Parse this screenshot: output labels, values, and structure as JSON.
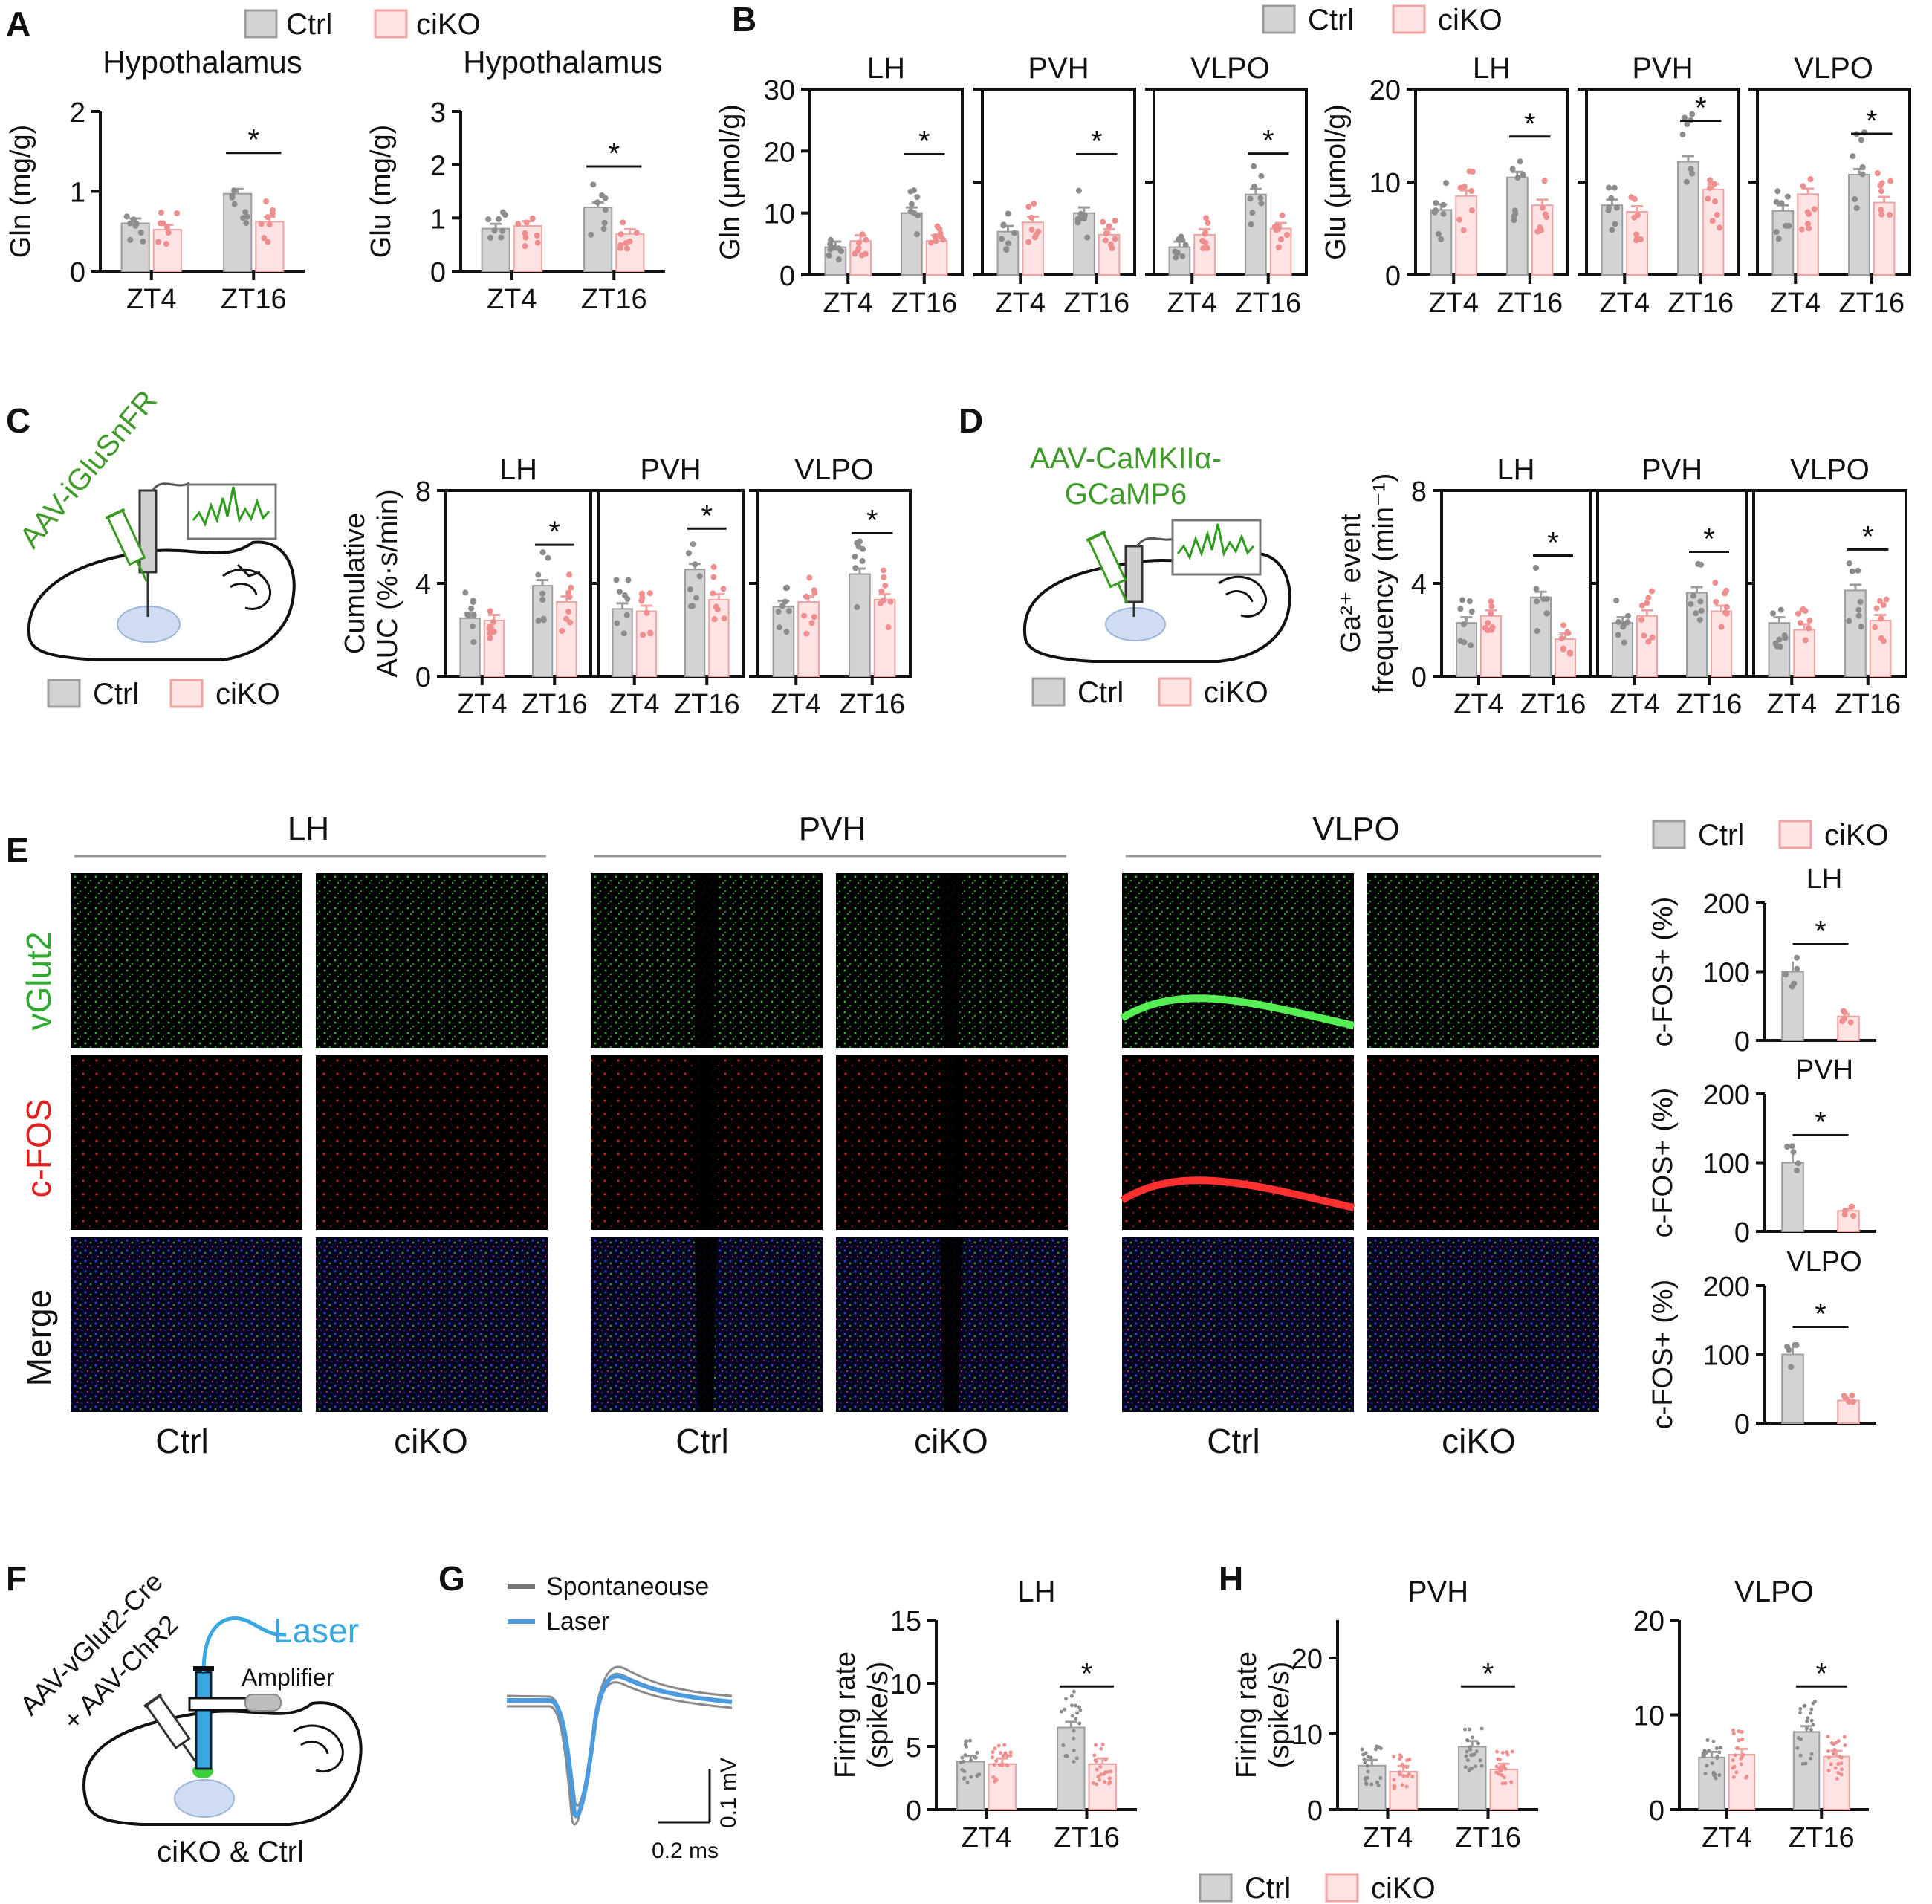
{
  "colors": {
    "ctrl": "#d3d3d3",
    "ctrl_edge": "#9c9c9c",
    "ctrl_dot": "#8c8c8c",
    "ciko": "#fde3e3",
    "ciko_edge": "#f0a3a3",
    "ciko_dot": "#ef8e8e",
    "green": "#3f9a2a",
    "red": "#e02020",
    "blue_laser": "#4a9be0"
  },
  "legend": {
    "ctrl": "Ctrl",
    "ciko": "ciKO"
  },
  "panels": {
    "A": "A",
    "B": "B",
    "C": "C",
    "D": "D",
    "E": "E",
    "F": "F",
    "G": "G",
    "H": "H"
  },
  "panel_c": {
    "virus": "AAV-iGluSnFR"
  },
  "panel_d": {
    "virus_line1": "AAV-CaMKIIα-",
    "virus_line2": "GCaMP6"
  },
  "panel_e": {
    "regions": [
      "LH",
      "PVH",
      "VLPO"
    ],
    "rows": [
      "vGlut2",
      "c-FOS",
      "Merge"
    ],
    "columns": [
      "Ctrl",
      "ciKO",
      "Ctrl",
      "ciKO",
      "Ctrl",
      "ciKO"
    ]
  },
  "panel_f": {
    "virus_line1": "AAV-vGlut2-Cre",
    "virus_line2": "+ AAV-ChR2",
    "laser": "Laser",
    "amplifier": "Amplifier",
    "caption": "ciKO & Ctrl"
  },
  "panel_g": {
    "legend_spont": "Spontaneouse",
    "legend_laser": "Laser",
    "scale_v": "0.1 mV",
    "scale_t": "0.2 ms"
  },
  "chart_data": [
    {
      "id": "A1",
      "type": "bar",
      "title": "Hypothalamus",
      "ylabel": "Gln (mg/g)",
      "ylim": [
        0,
        2
      ],
      "yticks": [
        0,
        1,
        2
      ],
      "categories": [
        "ZT4",
        "ZT16"
      ],
      "series": [
        {
          "name": "Ctrl",
          "values": [
            0.6,
            0.97
          ]
        },
        {
          "name": "ciKO",
          "values": [
            0.52,
            0.62
          ]
        }
      ],
      "significance": [
        {
          "category": "ZT16",
          "label": "*"
        }
      ]
    },
    {
      "id": "A2",
      "type": "bar",
      "title": "Hypothalamus",
      "ylabel": "Glu (mg/g)",
      "ylim": [
        0,
        3
      ],
      "yticks": [
        0,
        1,
        2,
        3
      ],
      "categories": [
        "ZT4",
        "ZT16"
      ],
      "series": [
        {
          "name": "Ctrl",
          "values": [
            0.8,
            1.2
          ]
        },
        {
          "name": "ciKO",
          "values": [
            0.85,
            0.7
          ]
        }
      ],
      "significance": [
        {
          "category": "ZT16",
          "label": "*"
        }
      ]
    },
    {
      "id": "B1",
      "type": "bar",
      "group": "B-Gln",
      "title": "LH",
      "ylabel": "Gln (μmol/g)",
      "ylim": [
        0,
        30
      ],
      "yticks": [
        0,
        10,
        20,
        30
      ],
      "categories": [
        "ZT4",
        "ZT16"
      ],
      "series": [
        {
          "name": "Ctrl",
          "values": [
            4.5,
            10
          ]
        },
        {
          "name": "ciKO",
          "values": [
            5.5,
            5.5
          ]
        }
      ],
      "significance": [
        {
          "category": "ZT16",
          "label": "*"
        }
      ]
    },
    {
      "id": "B2",
      "type": "bar",
      "group": "B-Gln",
      "title": "PVH",
      "ylim": [
        0,
        30
      ],
      "categories": [
        "ZT4",
        "ZT16"
      ],
      "series": [
        {
          "name": "Ctrl",
          "values": [
            7,
            10
          ]
        },
        {
          "name": "ciKO",
          "values": [
            8.5,
            6.5
          ]
        }
      ],
      "significance": [
        {
          "category": "ZT16",
          "label": "*"
        }
      ]
    },
    {
      "id": "B3",
      "type": "bar",
      "group": "B-Gln",
      "title": "VLPO",
      "ylim": [
        0,
        30
      ],
      "categories": [
        "ZT4",
        "ZT16"
      ],
      "series": [
        {
          "name": "Ctrl",
          "values": [
            4.5,
            13
          ]
        },
        {
          "name": "ciKO",
          "values": [
            6.5,
            7.5
          ]
        }
      ],
      "significance": [
        {
          "category": "ZT16",
          "label": "*"
        }
      ]
    },
    {
      "id": "B4",
      "type": "bar",
      "group": "B-Glu",
      "title": "LH",
      "ylabel": "Glu (μmol/g)",
      "ylim": [
        0,
        20
      ],
      "yticks": [
        0,
        10,
        20
      ],
      "categories": [
        "ZT4",
        "ZT16"
      ],
      "series": [
        {
          "name": "Ctrl",
          "values": [
            7,
            10.5
          ]
        },
        {
          "name": "ciKO",
          "values": [
            8.5,
            7.5
          ]
        }
      ],
      "significance": [
        {
          "category": "ZT16",
          "label": "*"
        }
      ]
    },
    {
      "id": "B5",
      "type": "bar",
      "group": "B-Glu",
      "title": "PVH",
      "ylim": [
        0,
        20
      ],
      "categories": [
        "ZT4",
        "ZT16"
      ],
      "series": [
        {
          "name": "Ctrl",
          "values": [
            7.5,
            12.2
          ]
        },
        {
          "name": "ciKO",
          "values": [
            6.8,
            9.2
          ]
        }
      ],
      "significance": [
        {
          "category": "ZT16",
          "label": "*"
        }
      ]
    },
    {
      "id": "B6",
      "type": "bar",
      "group": "B-Glu",
      "title": "VLPO",
      "ylim": [
        0,
        20
      ],
      "categories": [
        "ZT4",
        "ZT16"
      ],
      "series": [
        {
          "name": "Ctrl",
          "values": [
            6.9,
            10.8
          ]
        },
        {
          "name": "ciKO",
          "values": [
            8.7,
            7.8
          ]
        }
      ],
      "significance": [
        {
          "category": "ZT16",
          "label": "*"
        }
      ]
    },
    {
      "id": "C1",
      "type": "bar",
      "group": "C",
      "title": "LH",
      "ylabel_lines": [
        "Cumulative",
        "AUC (%·s/min)"
      ],
      "ylim": [
        0,
        8
      ],
      "yticks": [
        0,
        4,
        8
      ],
      "categories": [
        "ZT4",
        "ZT16"
      ],
      "series": [
        {
          "name": "Ctrl",
          "values": [
            2.5,
            3.9
          ]
        },
        {
          "name": "ciKO",
          "values": [
            2.4,
            3.2
          ]
        }
      ],
      "significance": [
        {
          "category": "ZT16",
          "label": "*"
        }
      ]
    },
    {
      "id": "C2",
      "type": "bar",
      "group": "C",
      "title": "PVH",
      "ylim": [
        0,
        8
      ],
      "categories": [
        "ZT4",
        "ZT16"
      ],
      "series": [
        {
          "name": "Ctrl",
          "values": [
            2.9,
            4.6
          ]
        },
        {
          "name": "ciKO",
          "values": [
            2.8,
            3.3
          ]
        }
      ],
      "significance": [
        {
          "category": "ZT16",
          "label": "*"
        }
      ]
    },
    {
      "id": "C3",
      "type": "bar",
      "group": "C",
      "title": "VLPO",
      "ylim": [
        0,
        8
      ],
      "categories": [
        "ZT4",
        "ZT16"
      ],
      "series": [
        {
          "name": "Ctrl",
          "values": [
            3.0,
            4.4
          ]
        },
        {
          "name": "ciKO",
          "values": [
            3.2,
            3.3
          ]
        }
      ],
      "significance": [
        {
          "category": "ZT16",
          "label": "*"
        }
      ]
    },
    {
      "id": "D1",
      "type": "bar",
      "group": "D",
      "title": "LH",
      "ylabel_lines": [
        "Ga²⁺ event",
        "frequency (min⁻¹)"
      ],
      "ylim": [
        0,
        8
      ],
      "yticks": [
        0,
        4,
        8
      ],
      "categories": [
        "ZT4",
        "ZT16"
      ],
      "series": [
        {
          "name": "Ctrl",
          "values": [
            2.3,
            3.4
          ]
        },
        {
          "name": "ciKO",
          "values": [
            2.6,
            1.6
          ]
        }
      ],
      "significance": [
        {
          "category": "ZT16",
          "label": "*"
        }
      ]
    },
    {
      "id": "D2",
      "type": "bar",
      "group": "D",
      "title": "PVH",
      "ylim": [
        0,
        8
      ],
      "categories": [
        "ZT4",
        "ZT16"
      ],
      "series": [
        {
          "name": "Ctrl",
          "values": [
            2.3,
            3.6
          ]
        },
        {
          "name": "ciKO",
          "values": [
            2.6,
            2.8
          ]
        }
      ],
      "significance": [
        {
          "category": "ZT16",
          "label": "*"
        }
      ]
    },
    {
      "id": "D3",
      "type": "bar",
      "group": "D",
      "title": "VLPO",
      "ylim": [
        0,
        8
      ],
      "categories": [
        "ZT4",
        "ZT16"
      ],
      "series": [
        {
          "name": "Ctrl",
          "values": [
            2.3,
            3.7
          ]
        },
        {
          "name": "ciKO",
          "values": [
            2.0,
            2.4
          ]
        }
      ],
      "significance": [
        {
          "category": "ZT16",
          "label": "*"
        }
      ]
    },
    {
      "id": "E1",
      "type": "bar",
      "group": "E",
      "title": "LH",
      "ylabel": "c-FOS+ (%)",
      "ylim": [
        0,
        200
      ],
      "yticks": [
        0,
        100,
        200
      ],
      "categories": [
        "Ctrl",
        "ciKO"
      ],
      "series": [
        {
          "name": "c-FOS+",
          "values": [
            100,
            35
          ]
        }
      ],
      "significance": [
        {
          "label": "*"
        }
      ]
    },
    {
      "id": "E2",
      "type": "bar",
      "group": "E",
      "title": "PVH",
      "ylabel": "c-FOS+ (%)",
      "ylim": [
        0,
        200
      ],
      "yticks": [
        0,
        100,
        200
      ],
      "categories": [
        "Ctrl",
        "ciKO"
      ],
      "series": [
        {
          "name": "c-FOS+",
          "values": [
            100,
            30
          ]
        }
      ],
      "significance": [
        {
          "label": "*"
        }
      ]
    },
    {
      "id": "E3",
      "type": "bar",
      "group": "E",
      "title": "VLPO",
      "ylabel": "c-FOS+ (%)",
      "ylim": [
        0,
        200
      ],
      "yticks": [
        0,
        100,
        200
      ],
      "categories": [
        "Ctrl",
        "ciKO"
      ],
      "series": [
        {
          "name": "c-FOS+",
          "values": [
            100,
            33
          ]
        }
      ],
      "significance": [
        {
          "label": "*"
        }
      ]
    },
    {
      "id": "G1",
      "type": "bar",
      "group": "G",
      "title": "LH",
      "ylabel_lines": [
        "Firing rate",
        "(spike/s)"
      ],
      "ylim": [
        0,
        15
      ],
      "yticks": [
        0,
        5,
        10,
        15
      ],
      "categories": [
        "ZT4",
        "ZT16"
      ],
      "series": [
        {
          "name": "Ctrl",
          "values": [
            3.8,
            6.5
          ]
        },
        {
          "name": "ciKO",
          "values": [
            3.6,
            3.6
          ]
        }
      ],
      "significance": [
        {
          "category": "ZT16",
          "label": "*"
        }
      ]
    },
    {
      "id": "H1",
      "type": "bar",
      "group": "H",
      "title": "PVH",
      "ylabel_lines": [
        "Firing rate",
        "(spike/s)"
      ],
      "ylim": [
        0,
        25
      ],
      "yticks": [
        0,
        10,
        20
      ],
      "categories": [
        "ZT4",
        "ZT16"
      ],
      "series": [
        {
          "name": "Ctrl",
          "values": [
            5.8,
            8.3
          ]
        },
        {
          "name": "ciKO",
          "values": [
            5.0,
            5.3
          ]
        }
      ],
      "significance": [
        {
          "category": "ZT16",
          "label": "*"
        }
      ]
    },
    {
      "id": "H2",
      "type": "bar",
      "group": "H",
      "title": "VLPO",
      "ylim": [
        0,
        20
      ],
      "yticks": [
        0,
        10,
        20
      ],
      "categories": [
        "ZT4",
        "ZT16"
      ],
      "series": [
        {
          "name": "Ctrl",
          "values": [
            5.5,
            8.2
          ]
        },
        {
          "name": "ciKO",
          "values": [
            5.8,
            5.6
          ]
        }
      ],
      "significance": [
        {
          "category": "ZT16",
          "label": "*"
        }
      ]
    }
  ]
}
